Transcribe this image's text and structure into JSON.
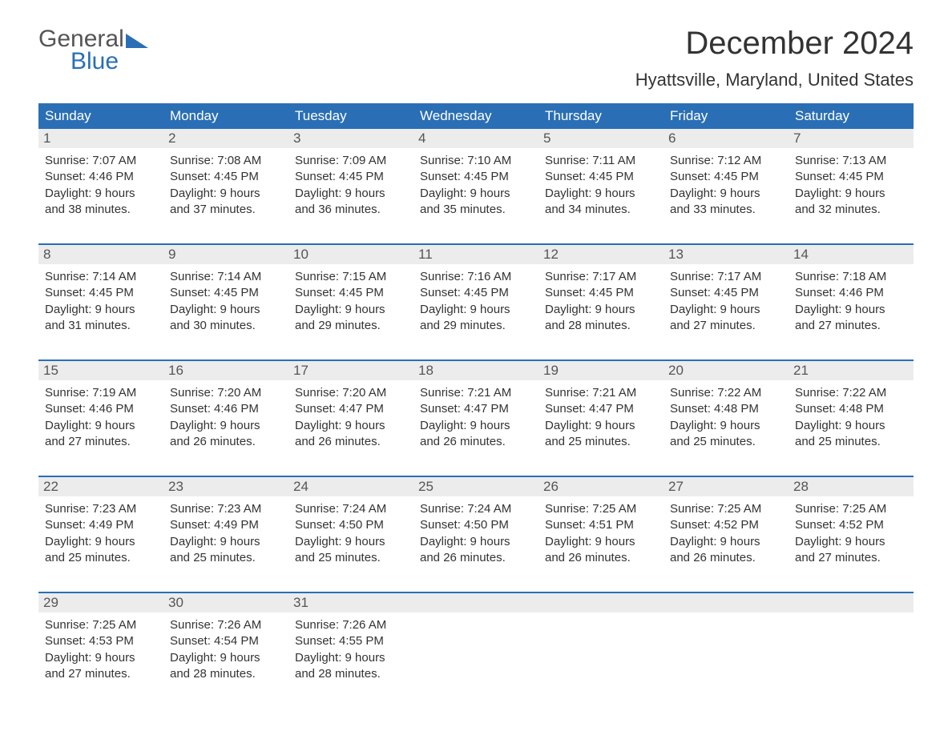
{
  "logo": {
    "word1": "General",
    "word2": "Blue",
    "colors": {
      "word1": "#555555",
      "word2": "#2a6fb5",
      "shape": "#2a6fb5"
    }
  },
  "title": "December 2024",
  "location": "Hyattsville, Maryland, United States",
  "colors": {
    "header_bg": "#2a6fb5",
    "header_text": "#ffffff",
    "daynum_bg": "#ececec",
    "daynum_text": "#555555",
    "border": "#2a6fb5",
    "body_text": "#333333",
    "background": "#ffffff"
  },
  "fonts": {
    "title_size": 40,
    "location_size": 22,
    "dayheader_size": 17,
    "daynum_size": 17,
    "content_size": 15
  },
  "day_names": [
    "Sunday",
    "Monday",
    "Tuesday",
    "Wednesday",
    "Thursday",
    "Friday",
    "Saturday"
  ],
  "weeks": [
    [
      {
        "num": "1",
        "sunrise": "Sunrise: 7:07 AM",
        "sunset": "Sunset: 4:46 PM",
        "dl1": "Daylight: 9 hours",
        "dl2": "and 38 minutes."
      },
      {
        "num": "2",
        "sunrise": "Sunrise: 7:08 AM",
        "sunset": "Sunset: 4:45 PM",
        "dl1": "Daylight: 9 hours",
        "dl2": "and 37 minutes."
      },
      {
        "num": "3",
        "sunrise": "Sunrise: 7:09 AM",
        "sunset": "Sunset: 4:45 PM",
        "dl1": "Daylight: 9 hours",
        "dl2": "and 36 minutes."
      },
      {
        "num": "4",
        "sunrise": "Sunrise: 7:10 AM",
        "sunset": "Sunset: 4:45 PM",
        "dl1": "Daylight: 9 hours",
        "dl2": "and 35 minutes."
      },
      {
        "num": "5",
        "sunrise": "Sunrise: 7:11 AM",
        "sunset": "Sunset: 4:45 PM",
        "dl1": "Daylight: 9 hours",
        "dl2": "and 34 minutes."
      },
      {
        "num": "6",
        "sunrise": "Sunrise: 7:12 AM",
        "sunset": "Sunset: 4:45 PM",
        "dl1": "Daylight: 9 hours",
        "dl2": "and 33 minutes."
      },
      {
        "num": "7",
        "sunrise": "Sunrise: 7:13 AM",
        "sunset": "Sunset: 4:45 PM",
        "dl1": "Daylight: 9 hours",
        "dl2": "and 32 minutes."
      }
    ],
    [
      {
        "num": "8",
        "sunrise": "Sunrise: 7:14 AM",
        "sunset": "Sunset: 4:45 PM",
        "dl1": "Daylight: 9 hours",
        "dl2": "and 31 minutes."
      },
      {
        "num": "9",
        "sunrise": "Sunrise: 7:14 AM",
        "sunset": "Sunset: 4:45 PM",
        "dl1": "Daylight: 9 hours",
        "dl2": "and 30 minutes."
      },
      {
        "num": "10",
        "sunrise": "Sunrise: 7:15 AM",
        "sunset": "Sunset: 4:45 PM",
        "dl1": "Daylight: 9 hours",
        "dl2": "and 29 minutes."
      },
      {
        "num": "11",
        "sunrise": "Sunrise: 7:16 AM",
        "sunset": "Sunset: 4:45 PM",
        "dl1": "Daylight: 9 hours",
        "dl2": "and 29 minutes."
      },
      {
        "num": "12",
        "sunrise": "Sunrise: 7:17 AM",
        "sunset": "Sunset: 4:45 PM",
        "dl1": "Daylight: 9 hours",
        "dl2": "and 28 minutes."
      },
      {
        "num": "13",
        "sunrise": "Sunrise: 7:17 AM",
        "sunset": "Sunset: 4:45 PM",
        "dl1": "Daylight: 9 hours",
        "dl2": "and 27 minutes."
      },
      {
        "num": "14",
        "sunrise": "Sunrise: 7:18 AM",
        "sunset": "Sunset: 4:46 PM",
        "dl1": "Daylight: 9 hours",
        "dl2": "and 27 minutes."
      }
    ],
    [
      {
        "num": "15",
        "sunrise": "Sunrise: 7:19 AM",
        "sunset": "Sunset: 4:46 PM",
        "dl1": "Daylight: 9 hours",
        "dl2": "and 27 minutes."
      },
      {
        "num": "16",
        "sunrise": "Sunrise: 7:20 AM",
        "sunset": "Sunset: 4:46 PM",
        "dl1": "Daylight: 9 hours",
        "dl2": "and 26 minutes."
      },
      {
        "num": "17",
        "sunrise": "Sunrise: 7:20 AM",
        "sunset": "Sunset: 4:47 PM",
        "dl1": "Daylight: 9 hours",
        "dl2": "and 26 minutes."
      },
      {
        "num": "18",
        "sunrise": "Sunrise: 7:21 AM",
        "sunset": "Sunset: 4:47 PM",
        "dl1": "Daylight: 9 hours",
        "dl2": "and 26 minutes."
      },
      {
        "num": "19",
        "sunrise": "Sunrise: 7:21 AM",
        "sunset": "Sunset: 4:47 PM",
        "dl1": "Daylight: 9 hours",
        "dl2": "and 25 minutes."
      },
      {
        "num": "20",
        "sunrise": "Sunrise: 7:22 AM",
        "sunset": "Sunset: 4:48 PM",
        "dl1": "Daylight: 9 hours",
        "dl2": "and 25 minutes."
      },
      {
        "num": "21",
        "sunrise": "Sunrise: 7:22 AM",
        "sunset": "Sunset: 4:48 PM",
        "dl1": "Daylight: 9 hours",
        "dl2": "and 25 minutes."
      }
    ],
    [
      {
        "num": "22",
        "sunrise": "Sunrise: 7:23 AM",
        "sunset": "Sunset: 4:49 PM",
        "dl1": "Daylight: 9 hours",
        "dl2": "and 25 minutes."
      },
      {
        "num": "23",
        "sunrise": "Sunrise: 7:23 AM",
        "sunset": "Sunset: 4:49 PM",
        "dl1": "Daylight: 9 hours",
        "dl2": "and 25 minutes."
      },
      {
        "num": "24",
        "sunrise": "Sunrise: 7:24 AM",
        "sunset": "Sunset: 4:50 PM",
        "dl1": "Daylight: 9 hours",
        "dl2": "and 25 minutes."
      },
      {
        "num": "25",
        "sunrise": "Sunrise: 7:24 AM",
        "sunset": "Sunset: 4:50 PM",
        "dl1": "Daylight: 9 hours",
        "dl2": "and 26 minutes."
      },
      {
        "num": "26",
        "sunrise": "Sunrise: 7:25 AM",
        "sunset": "Sunset: 4:51 PM",
        "dl1": "Daylight: 9 hours",
        "dl2": "and 26 minutes."
      },
      {
        "num": "27",
        "sunrise": "Sunrise: 7:25 AM",
        "sunset": "Sunset: 4:52 PM",
        "dl1": "Daylight: 9 hours",
        "dl2": "and 26 minutes."
      },
      {
        "num": "28",
        "sunrise": "Sunrise: 7:25 AM",
        "sunset": "Sunset: 4:52 PM",
        "dl1": "Daylight: 9 hours",
        "dl2": "and 27 minutes."
      }
    ],
    [
      {
        "num": "29",
        "sunrise": "Sunrise: 7:25 AM",
        "sunset": "Sunset: 4:53 PM",
        "dl1": "Daylight: 9 hours",
        "dl2": "and 27 minutes."
      },
      {
        "num": "30",
        "sunrise": "Sunrise: 7:26 AM",
        "sunset": "Sunset: 4:54 PM",
        "dl1": "Daylight: 9 hours",
        "dl2": "and 28 minutes."
      },
      {
        "num": "31",
        "sunrise": "Sunrise: 7:26 AM",
        "sunset": "Sunset: 4:55 PM",
        "dl1": "Daylight: 9 hours",
        "dl2": "and 28 minutes."
      },
      {
        "empty": true
      },
      {
        "empty": true
      },
      {
        "empty": true
      },
      {
        "empty": true
      }
    ]
  ]
}
